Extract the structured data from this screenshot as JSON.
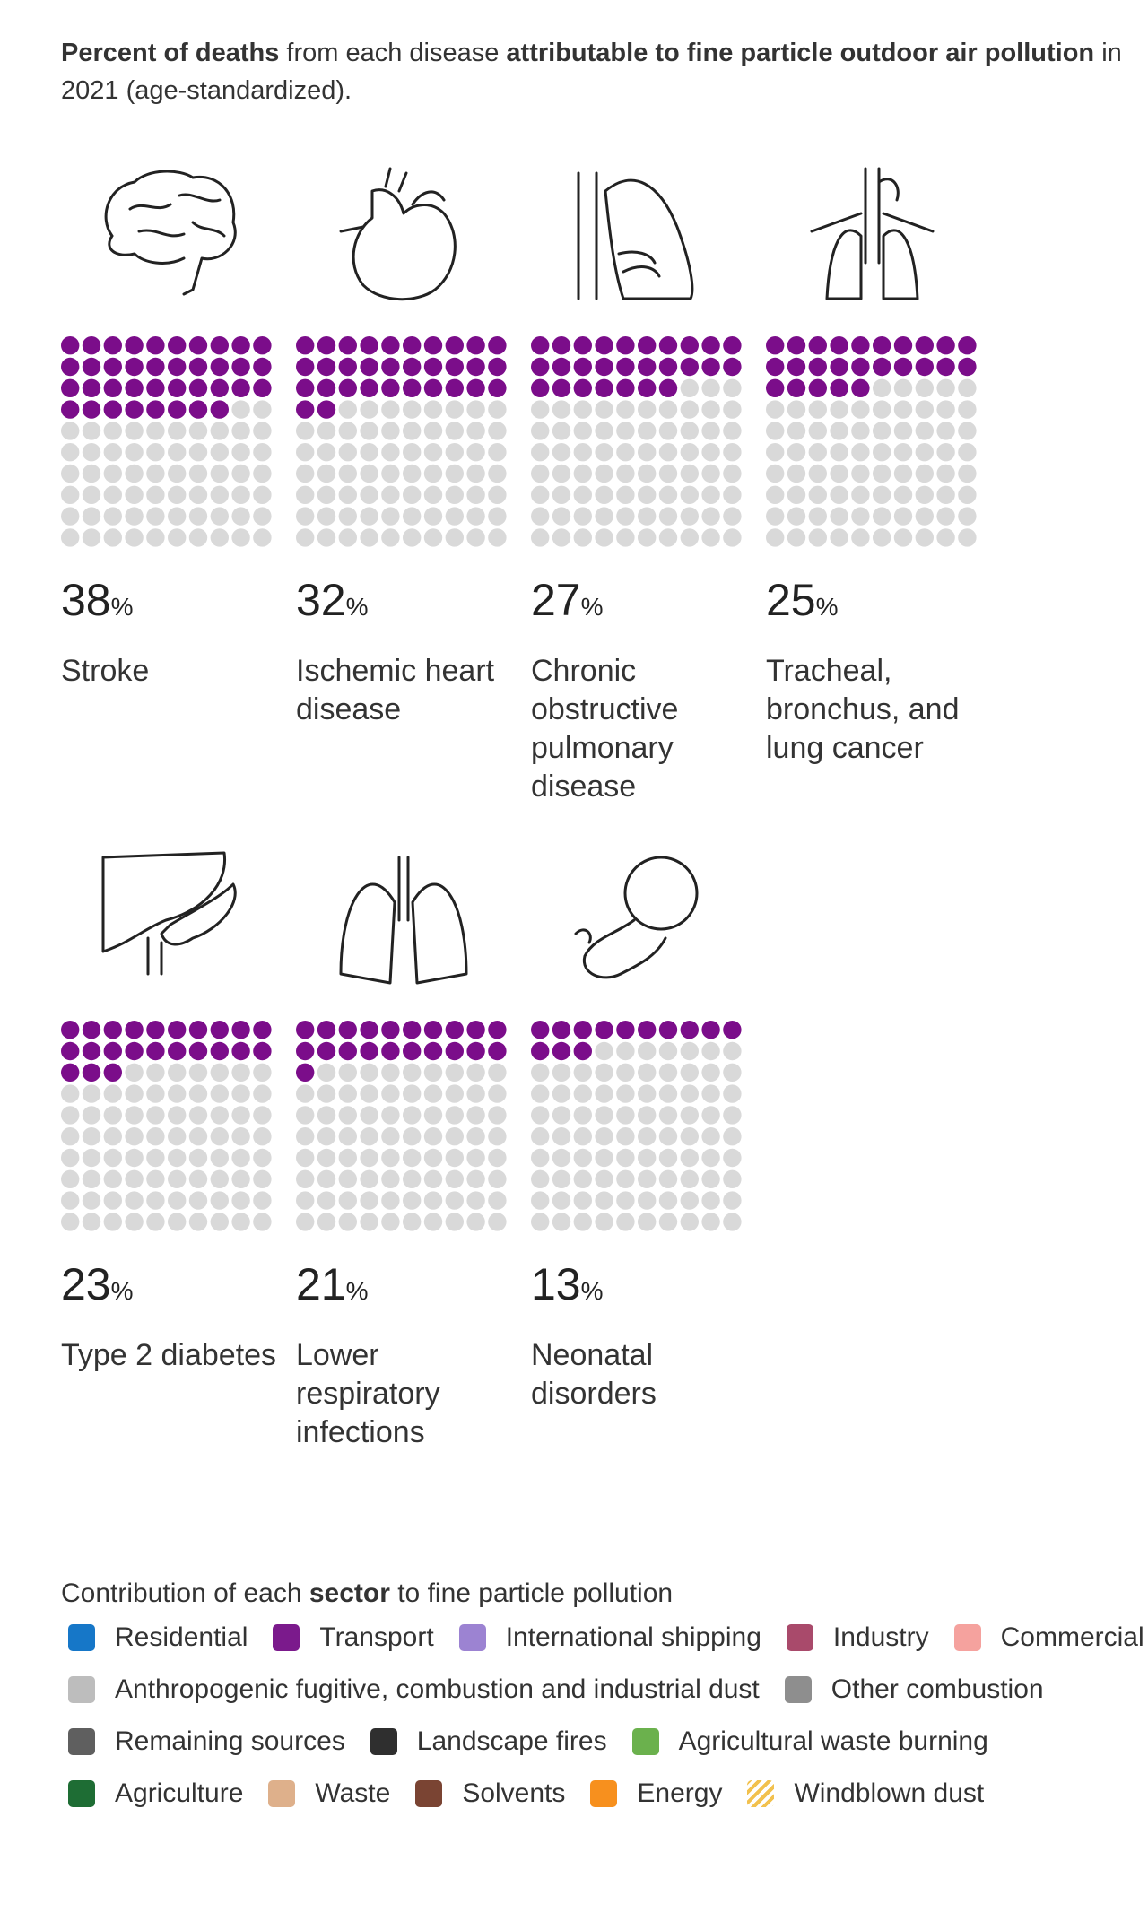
{
  "chart_data": {
    "type": "waffle",
    "title_runs": [
      {
        "text": "Percent of deaths",
        "bold": true
      },
      {
        "text": " from each disease ",
        "bold": false
      },
      {
        "text": "attributable to fine particle outdoor air pollution",
        "bold": true
      },
      {
        "text": " in 2021 (age-standardized).",
        "bold": false
      }
    ],
    "categories": [
      "Stroke",
      "Ischemic heart disease",
      "Chronic obstructive pulmonary disease",
      "Tracheal, bronchus, and lung cancer",
      "Type 2 diabetes",
      "Lower respiratory infections",
      "Neonatal disorders"
    ],
    "values": [
      38,
      32,
      27,
      25,
      23,
      21,
      13
    ],
    "unit": "%",
    "total": 100,
    "color": "#7b0d8a",
    "empty_color": "#d9d9d9",
    "legend": {
      "title_runs": [
        {
          "text": "Contribution of each ",
          "bold": false
        },
        {
          "text": "sector",
          "bold": true
        },
        {
          "text": " to fine particle pollution",
          "bold": false
        }
      ],
      "items": [
        {
          "name": "Residential",
          "color": "#1677c8"
        },
        {
          "name": "Transport",
          "color": "#7b1a8c"
        },
        {
          "name": "International shipping",
          "color": "#9c83d2"
        },
        {
          "name": "Industry",
          "color": "#a94a6b"
        },
        {
          "name": "Commercial",
          "color": "#f5a29e"
        },
        {
          "name": "Anthropogenic fugitive, combustion and industrial dust",
          "color": "#bdbdbd"
        },
        {
          "name": "Other combustion",
          "color": "#8e8e8e"
        },
        {
          "name": "Remaining sources",
          "color": "#5f5f5f"
        },
        {
          "name": "Landscape fires",
          "color": "#2f2f2f"
        },
        {
          "name": "Agricultural waste burning",
          "color": "#6bb14d"
        },
        {
          "name": "Agriculture",
          "color": "#1e6d34"
        },
        {
          "name": "Waste",
          "color": "#deb08b"
        },
        {
          "name": "Solvents",
          "color": "#7a4433"
        },
        {
          "name": "Energy",
          "color": "#f7901e"
        },
        {
          "name": "Windblown dust",
          "color": "#f2c14e",
          "pattern": "hatch"
        }
      ]
    }
  }
}
